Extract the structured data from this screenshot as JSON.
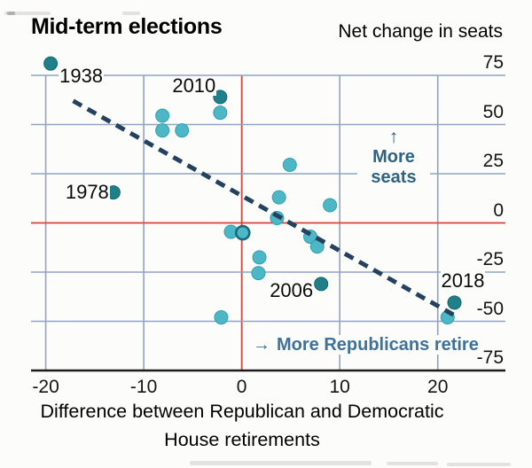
{
  "header": {
    "title": "Mid-term elections",
    "right_label": "Net change in seats"
  },
  "chart_data": {
    "type": "scatter",
    "title": "Mid-term elections",
    "y_axis_label": "Net change in seats",
    "x_axis_label_lines": [
      "Difference between Republican and Democratic",
      "House retirements"
    ],
    "x_ticks": [
      -20,
      -10,
      0,
      10,
      20
    ],
    "y_ticks": [
      75,
      50,
      25,
      0,
      -25,
      -50,
      -75
    ],
    "xlim": [
      -21.5,
      26.9
    ],
    "ylim": [
      -75,
      75
    ],
    "grid": true,
    "legend": "none",
    "grid_color": "#8fa4c3",
    "axis_color": "#1b1b1b",
    "zero_line_color": "#d8433b",
    "point_colors": {
      "light": "#4db7c6",
      "light_stroke": "#2f9fb0",
      "dark": "#1f8089",
      "dark_stroke": "#14646d",
      "ring_stroke": "#176b7a"
    },
    "trend_line": {
      "x1": -17.2,
      "y1": 62,
      "x2": 21.9,
      "y2": -47.5,
      "dashed": true,
      "color": "#24425f"
    },
    "points": [
      {
        "x": -19.5,
        "y": 81,
        "tone": "dark",
        "label": "1938",
        "label_offset": [
          9,
          3
        ]
      },
      {
        "x": -2.2,
        "y": 64,
        "tone": "dark",
        "label": "2010",
        "label_offset": [
          -55,
          -23
        ]
      },
      {
        "x": -2.2,
        "y": 56,
        "tone": "light"
      },
      {
        "x": -8.1,
        "y": 54.5,
        "tone": "light"
      },
      {
        "x": -8.1,
        "y": 47,
        "tone": "light"
      },
      {
        "x": -6.1,
        "y": 47,
        "tone": "light"
      },
      {
        "x": -13.1,
        "y": 15.5,
        "tone": "dark",
        "label": "1978",
        "label_offset": [
          -55,
          -11
        ]
      },
      {
        "x": 4.9,
        "y": 29.5,
        "tone": "light"
      },
      {
        "x": 3.8,
        "y": 13,
        "tone": "light"
      },
      {
        "x": 9,
        "y": 9,
        "tone": "light"
      },
      {
        "x": 3.6,
        "y": 2.5,
        "tone": "light"
      },
      {
        "x": -1.1,
        "y": -4.5,
        "tone": "light"
      },
      {
        "x": 0.1,
        "y": -5,
        "tone": "light",
        "ring": true
      },
      {
        "x": 1.8,
        "y": -17.5,
        "tone": "light"
      },
      {
        "x": 7,
        "y": -7,
        "tone": "light"
      },
      {
        "x": 7.7,
        "y": -12,
        "tone": "light"
      },
      {
        "x": 1.7,
        "y": -25.5,
        "tone": "light"
      },
      {
        "x": 8.1,
        "y": -31,
        "tone": "dark",
        "label": "2006",
        "label_offset": [
          -59,
          -3
        ]
      },
      {
        "x": -2.1,
        "y": -48,
        "tone": "light"
      },
      {
        "x": 21.7,
        "y": -40.5,
        "tone": "dark",
        "label": "2018",
        "label_offset": [
          -16,
          -35
        ]
      },
      {
        "x": 21,
        "y": -48,
        "tone": "light"
      }
    ],
    "annotations": {
      "more_seats": {
        "arrow": "↑",
        "line1": "More",
        "line2": "seats",
        "color": "#2e6384"
      },
      "more_retire": {
        "arrow": "→",
        "text": "More Republicans retire",
        "color": "#3e719c"
      }
    }
  }
}
